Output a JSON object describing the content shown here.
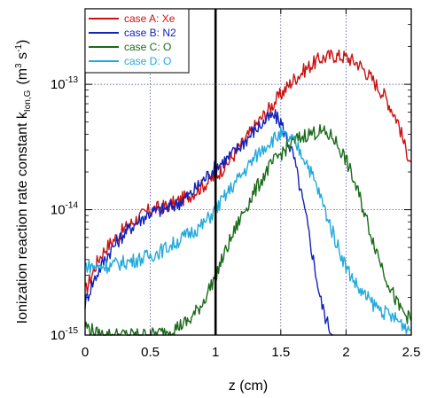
{
  "chart_data": {
    "type": "line",
    "title": "",
    "xlabel": "z (cm)",
    "ylabel_main": "Ionization reaction rate constant k",
    "ylabel_sub": "Ion,G",
    "ylabel_units": "(m",
    "ylabel_units_exp": "3",
    "ylabel_units_mid": " s",
    "ylabel_units_exp2": "-1",
    "ylabel_units_close": ")",
    "xlim": [
      0,
      2.5
    ],
    "ylim": [
      1e-15,
      4e-13
    ],
    "yscale": "log",
    "grid": "dotted",
    "legend_position": "top-left",
    "x_ticks": [
      "0",
      "0.5",
      "1",
      "1.5",
      "2",
      "2.5"
    ],
    "x_tick_values": [
      0,
      0.5,
      1,
      1.5,
      2,
      2.5
    ],
    "y_ticks": [
      {
        "base": "10",
        "exp": "-15",
        "value": 1e-15
      },
      {
        "base": "10",
        "exp": "-14",
        "value": 1e-14
      },
      {
        "base": "10",
        "exp": "-13",
        "value": 1e-13
      }
    ],
    "reference_line_x": 1,
    "series": [
      {
        "name": "case A: Xe",
        "color": "#cc1111",
        "x": [
          0,
          0.05,
          0.1,
          0.15,
          0.2,
          0.3,
          0.4,
          0.5,
          0.6,
          0.7,
          0.8,
          0.9,
          1.0,
          1.1,
          1.2,
          1.3,
          1.4,
          1.5,
          1.6,
          1.7,
          1.8,
          1.9,
          2.0,
          2.1,
          2.2,
          2.3,
          2.4,
          2.45,
          2.5
        ],
        "y": [
          2.2e-15,
          3e-15,
          4e-15,
          4.8e-15,
          5.5e-15,
          7e-15,
          8.5e-15,
          1e-14,
          1.05e-14,
          1.15e-14,
          1.3e-14,
          1.55e-14,
          1.85e-14,
          2.4e-14,
          3.3e-14,
          4.6e-14,
          6.2e-14,
          8.3e-14,
          1.1e-13,
          1.35e-13,
          1.6e-13,
          1.7e-13,
          1.65e-13,
          1.45e-13,
          1.1e-13,
          8e-14,
          5e-14,
          3.2e-14,
          2.4e-14
        ]
      },
      {
        "name": "case B: N2",
        "color": "#1122bb",
        "x": [
          0,
          0.05,
          0.1,
          0.15,
          0.2,
          0.3,
          0.4,
          0.5,
          0.6,
          0.7,
          0.8,
          0.9,
          1.0,
          1.1,
          1.2,
          1.3,
          1.4,
          1.45,
          1.5,
          1.6,
          1.7,
          1.75,
          1.8,
          1.85,
          1.9
        ],
        "y": [
          1.8e-15,
          2.5e-15,
          3.2e-15,
          4e-15,
          4.8e-15,
          6.5e-15,
          8e-15,
          9.5e-15,
          1e-14,
          1.1e-14,
          1.3e-14,
          1.7e-14,
          2.2e-14,
          2.6e-14,
          3.3e-14,
          4.3e-14,
          5.3e-14,
          5.6e-14,
          5e-14,
          2.6e-14,
          8e-15,
          4e-15,
          2e-15,
          1.3e-15,
          1e-15
        ]
      },
      {
        "name": "case C: O",
        "color": "#1a6b1a",
        "x": [
          0,
          0.1,
          0.2,
          0.3,
          0.4,
          0.5,
          0.6,
          0.7,
          0.8,
          0.9,
          1.0,
          1.1,
          1.2,
          1.3,
          1.4,
          1.5,
          1.6,
          1.7,
          1.8,
          1.9,
          2.0,
          2.1,
          2.2,
          2.3,
          2.4,
          2.5
        ],
        "y": [
          1.2e-15,
          1e-15,
          1e-15,
          1e-15,
          1e-15,
          1e-15,
          1.05e-15,
          1.15e-15,
          1.3e-15,
          1.8e-15,
          3e-15,
          5.3e-15,
          9e-15,
          1.4e-14,
          2.1e-14,
          2.8e-14,
          3.5e-14,
          4e-14,
          4.2e-14,
          3.8e-14,
          2.5e-14,
          1.3e-14,
          6e-15,
          3e-15,
          1.7e-15,
          1.3e-15
        ]
      },
      {
        "name": "case D: O",
        "color": "#22aadd",
        "x": [
          0,
          0.1,
          0.2,
          0.3,
          0.4,
          0.5,
          0.6,
          0.7,
          0.8,
          0.9,
          1.0,
          1.1,
          1.2,
          1.3,
          1.4,
          1.5,
          1.6,
          1.7,
          1.8,
          1.9,
          2.0,
          2.1,
          2.2,
          2.3,
          2.4,
          2.5
        ],
        "y": [
          3.6e-15,
          3.5e-15,
          3.6e-15,
          3.8e-15,
          4e-15,
          4.3e-15,
          4.8e-15,
          5.5e-15,
          6.5e-15,
          7.5e-15,
          1e-14,
          1.4e-14,
          1.9e-14,
          2.6e-14,
          3.4e-14,
          4e-14,
          3.5e-14,
          2.4e-14,
          1.3e-14,
          6.5e-15,
          3.5e-15,
          2.3e-15,
          1.8e-15,
          1.5e-15,
          1.3e-15,
          1.1e-15
        ]
      }
    ]
  }
}
